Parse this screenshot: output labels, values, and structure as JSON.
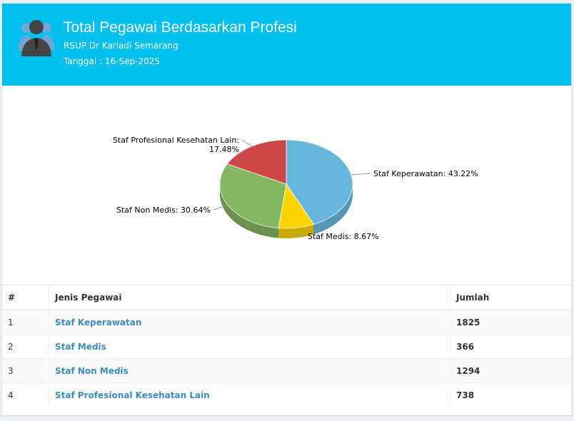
{
  "header": {
    "title": "Total Pegawai Berdasarkan Profesi",
    "subtitle": "RSUP Dr Kariadi Semarang",
    "date": "Tanggal : 16-Sep-2025",
    "icon": "users-icon"
  },
  "chart_data": {
    "type": "pie",
    "title": "",
    "series": [
      {
        "name": "Staf Keperawatan",
        "value": 43.22,
        "label": "Staf Keperawatan: 43.22%",
        "color": "#67b7dc",
        "side": "#5597b7"
      },
      {
        "name": "Staf Medis",
        "value": 8.67,
        "label": "Staf Medis: 8.67%",
        "color": "#fdd400",
        "side": "#ccab00"
      },
      {
        "name": "Staf Non Medis",
        "value": 30.64,
        "label": "Staf Non Medis: 30.64%",
        "color": "#84b761",
        "side": "#6a914d"
      },
      {
        "name": "Staf Profesional Kesehatan Lain",
        "value": 17.48,
        "label": "Staf Profesional Kesehatan Lain:",
        "label2": "17.48%",
        "color": "#cc4748",
        "side": "#a33839"
      }
    ]
  },
  "table": {
    "headers": [
      "#",
      "Jenis Pegawai",
      "Jumlah"
    ],
    "rows": [
      [
        "1",
        "Staf Keperawatan",
        "1825"
      ],
      [
        "2",
        "Staf Medis",
        "366"
      ],
      [
        "3",
        "Staf Non Medis",
        "1294"
      ],
      [
        "4",
        "Staf Profesional Kesehatan Lain",
        "738"
      ]
    ]
  }
}
